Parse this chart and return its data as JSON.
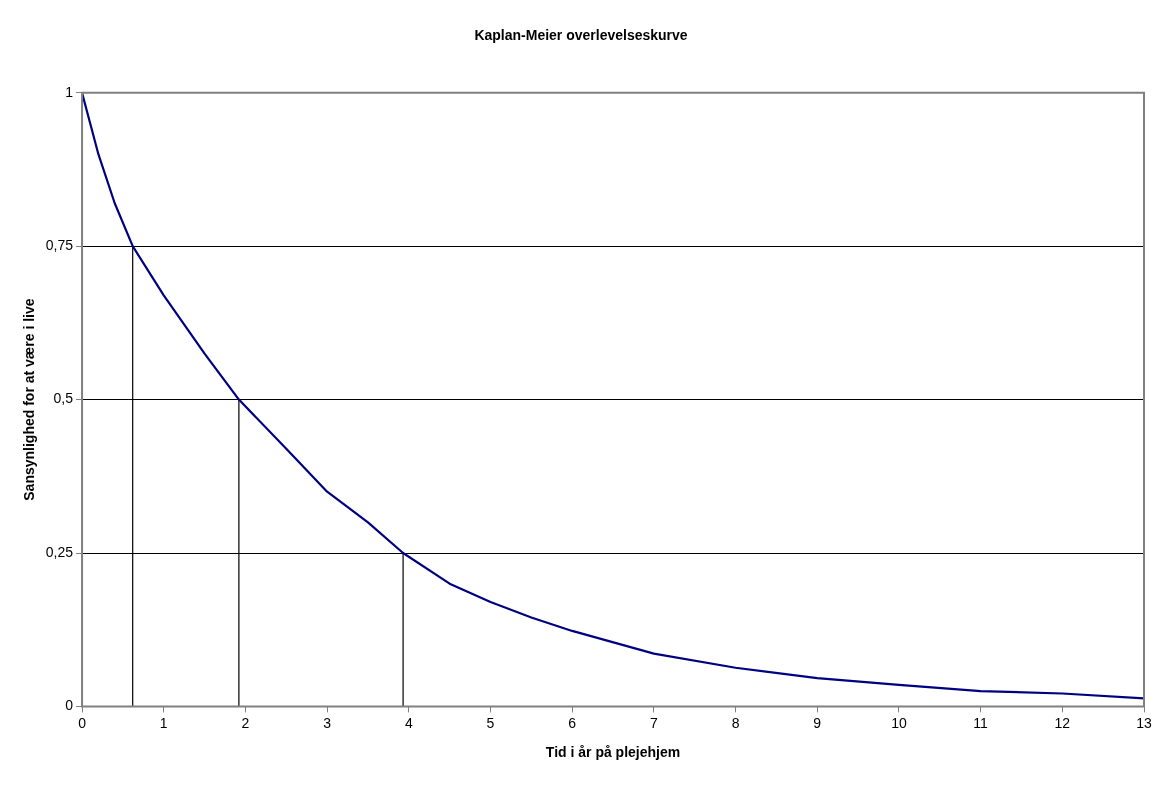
{
  "chart_data": {
    "type": "line",
    "title": "Kaplan-Meier overlevelseskurve",
    "xlabel": "Tid i år på plejehjem",
    "ylabel": "Sansynlighed for at være i live",
    "xlim": [
      0,
      13
    ],
    "xticks": [
      0,
      1,
      2,
      3,
      4,
      5,
      6,
      7,
      8,
      9,
      10,
      11,
      12,
      13
    ],
    "ylim": [
      0,
      1
    ],
    "yticks": [
      {
        "value": 0,
        "label": "0"
      },
      {
        "value": 0.25,
        "label": "0,25"
      },
      {
        "value": 0.5,
        "label": "0,5"
      },
      {
        "value": 0.75,
        "label": "0,75"
      },
      {
        "value": 1,
        "label": "1"
      }
    ],
    "grid": "y",
    "legend": false,
    "marker": "none",
    "line_style": "solid",
    "series": [
      {
        "color": "#000080",
        "x": [
          0,
          0.1,
          0.2,
          0.4,
          0.62,
          1,
          1.5,
          1.92,
          2.5,
          3,
          3.5,
          3.93,
          4.5,
          5,
          5.5,
          6,
          7,
          8,
          9,
          10,
          11,
          12,
          13
        ],
        "values": [
          1,
          0.95,
          0.9,
          0.82,
          0.75,
          0.67,
          0.575,
          0.5,
          0.42,
          0.35,
          0.3,
          0.25,
          0.2,
          0.17,
          0.145,
          0.123,
          0.086,
          0.063,
          0.046,
          0.035,
          0.025,
          0.021,
          0.013
        ]
      },
      {
        "color": "#000000",
        "x": [
          0.62,
          0.62
        ],
        "values": [
          0,
          0.75
        ]
      },
      {
        "color": "#000000",
        "x": [
          1.92,
          1.92
        ],
        "values": [
          0,
          0.5
        ]
      },
      {
        "color": "#000000",
        "x": [
          3.93,
          3.93
        ],
        "values": [
          0,
          0.25
        ]
      }
    ]
  }
}
